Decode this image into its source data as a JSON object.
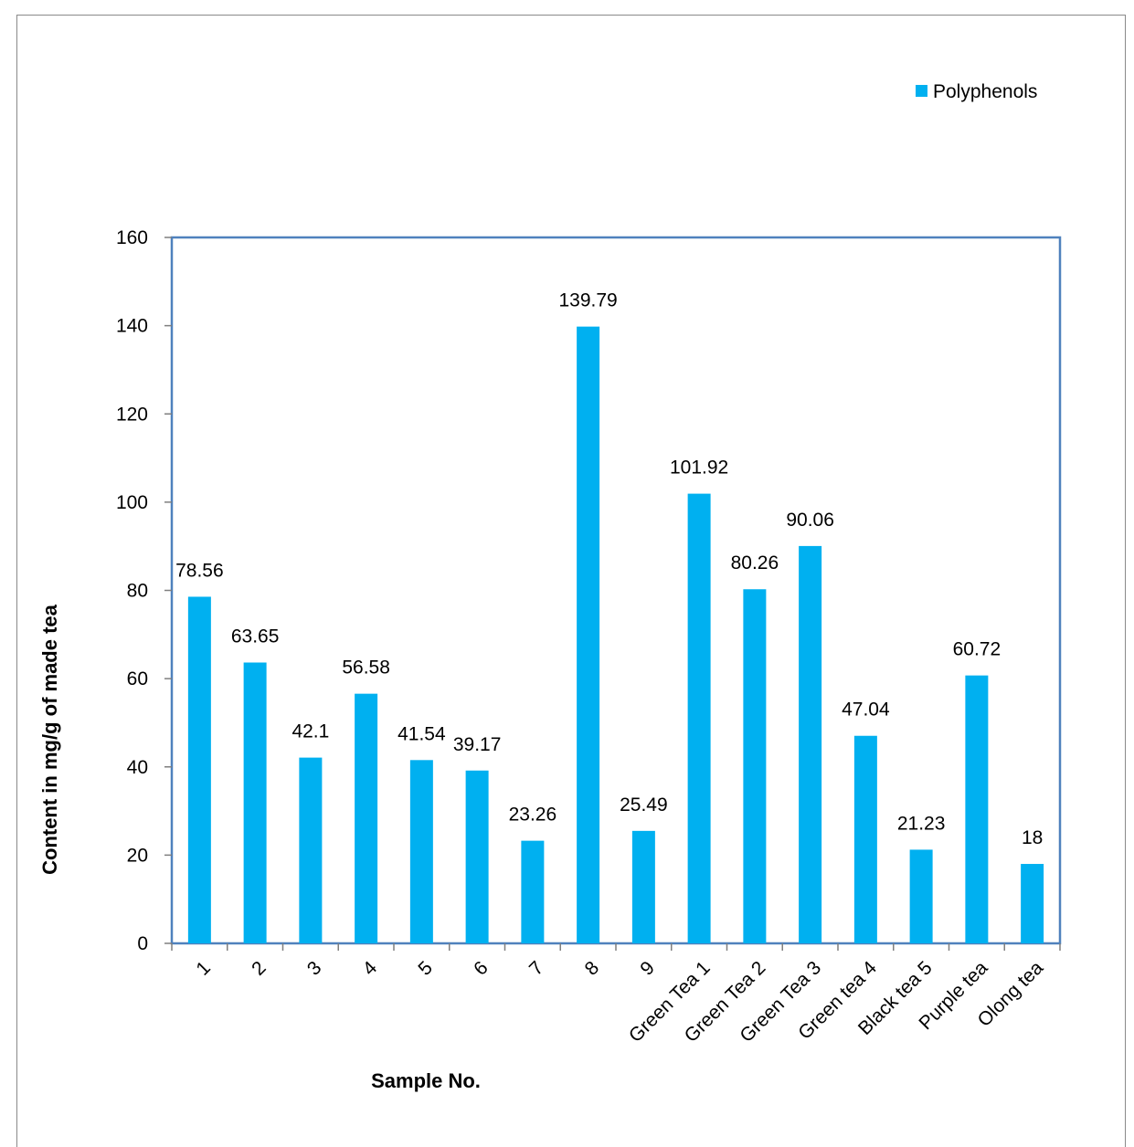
{
  "chart_data": {
    "type": "bar",
    "title": "",
    "xlabel": "Sample No.",
    "ylabel": "Content in mg/g of made tea",
    "ylim": [
      0,
      160
    ],
    "yticks": [
      0,
      20,
      40,
      60,
      80,
      100,
      120,
      140,
      160
    ],
    "legend": {
      "position": "top-right",
      "entries": [
        "Polyphenols"
      ]
    },
    "grid": false,
    "categories": [
      "1",
      "2",
      "3",
      "4",
      "5",
      "6",
      "7",
      "8",
      "9",
      "Green Tea 1",
      "Green Tea  2",
      "Green Tea  3",
      "Green tea 4",
      "Black tea 5",
      "Purple tea",
      "Olong tea"
    ],
    "series": [
      {
        "name": "Polyphenols",
        "color": "#00b0f0",
        "values": [
          78.56,
          63.65,
          42.1,
          56.58,
          41.54,
          39.17,
          23.26,
          139.79,
          25.49,
          101.92,
          80.26,
          90.06,
          47.04,
          21.23,
          60.72,
          18
        ],
        "labels": [
          "78.56",
          "63.65",
          "42.1",
          "56.58",
          "41.54",
          "39.17",
          "23.26",
          "139.79",
          "25.49",
          "101.92",
          "80.26",
          "90.06",
          "47.04",
          "21.23",
          "60.72",
          "18"
        ]
      }
    ]
  }
}
